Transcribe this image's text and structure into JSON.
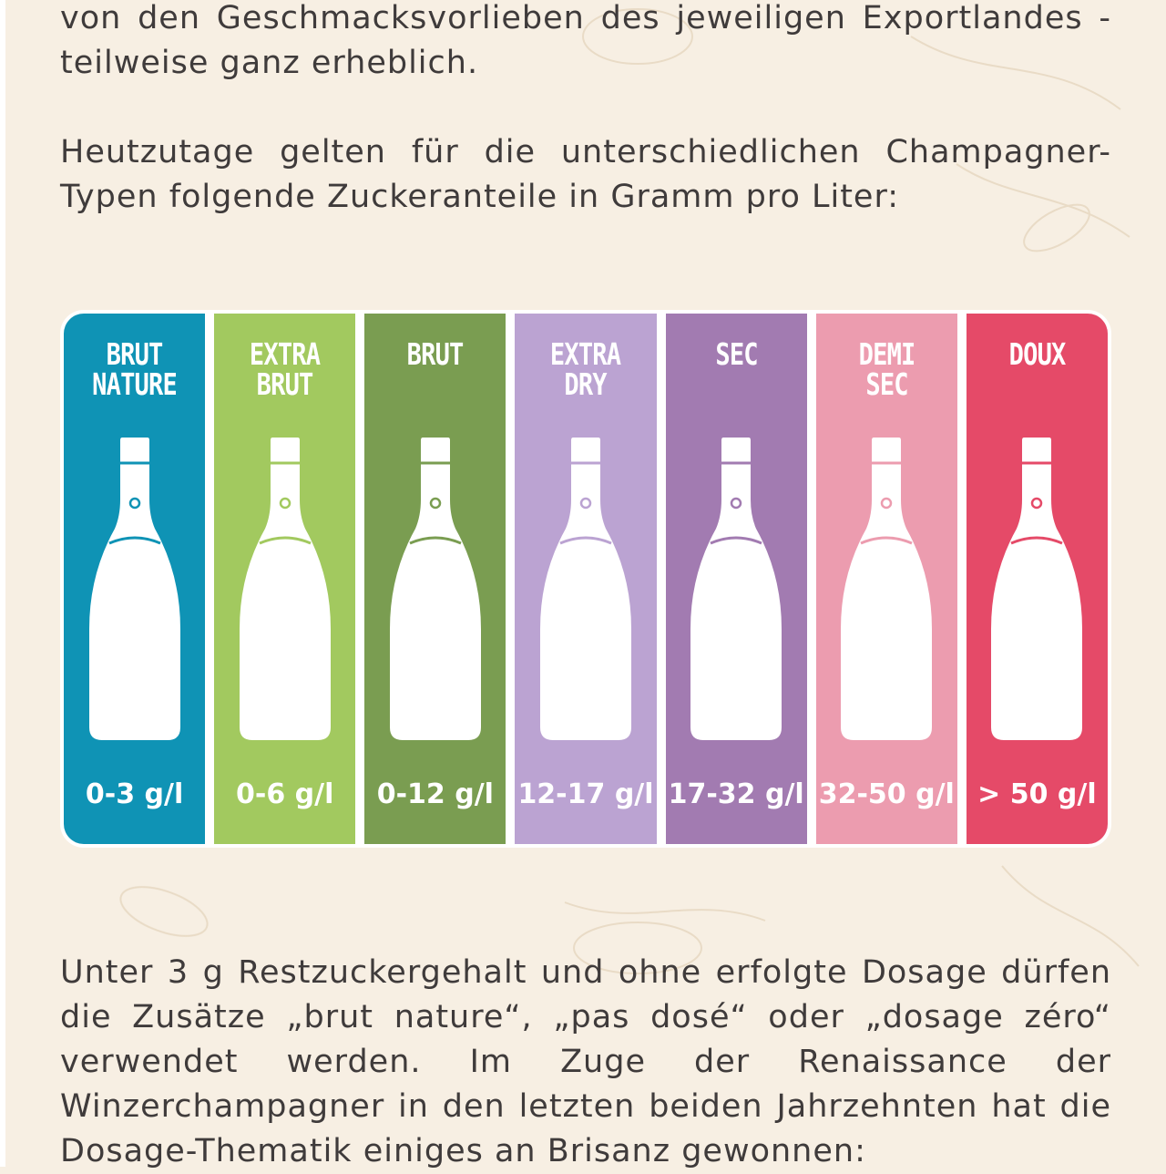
{
  "paragraphs": {
    "p1": "von den Geschmacksvorlieben des jeweiligen Exportlandes - teilweise ganz erheblich.",
    "p2": "Heutzutage gelten für die unterschiedlichen Champagner-Typen folgende Zuckeranteile in Gramm pro Liter:",
    "p3": "Unter 3 g Restzuckergehalt und ohne erfolgte Dosage dürfen die Zusätze „brut nature“, „pas dosé“ oder „dosage zéro“ verwendet werden. Im Zuge der Renaissance der Winzerchampagner in den letzten beiden Jahrzehnten hat die Dosage-Thematik einiges an Brisanz gewonnen:"
  },
  "sweetness_chart": {
    "columns": [
      {
        "title": "BRUT\nNATURE",
        "value": "0-3 g/l",
        "color": "#0f93b5"
      },
      {
        "title": "EXTRA\nBRUT",
        "value": "0-6 g/l",
        "color": "#a2c95f"
      },
      {
        "title": "BRUT",
        "value": "0-12 g/l",
        "color": "#7a9d51"
      },
      {
        "title": "EXTRA\nDRY",
        "value": "12-17 g/l",
        "color": "#bba3d2"
      },
      {
        "title": "SEC",
        "value": "17-32 g/l",
        "color": "#a27bb1"
      },
      {
        "title": "DEMI\nSEC",
        "value": "32-50 g/l",
        "color": "#ec9caf"
      },
      {
        "title": "DOUX",
        "value": "> 50 g/l",
        "color": "#e54a68"
      }
    ],
    "bottle_icon": "champagne-bottle-icon"
  }
}
